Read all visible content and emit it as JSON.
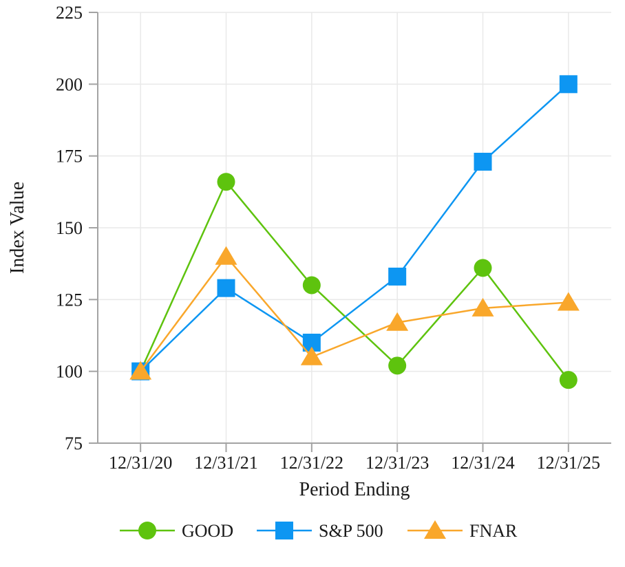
{
  "chart_data": {
    "type": "line",
    "title": "",
    "xlabel": "Period Ending",
    "ylabel": "Index Value",
    "categories": [
      "12/31/20",
      "12/31/21",
      "12/31/22",
      "12/31/23",
      "12/31/24",
      "12/31/25"
    ],
    "series": [
      {
        "name": "GOOD",
        "marker": "circle",
        "color": "#5ec30e",
        "values": [
          100,
          166,
          130,
          102,
          136,
          97
        ]
      },
      {
        "name": "S&P 500",
        "marker": "square",
        "color": "#0d96f2",
        "values": [
          100,
          129,
          110,
          133,
          173,
          200
        ]
      },
      {
        "name": "FNAR",
        "marker": "triangle",
        "color": "#f9a72b",
        "values": [
          100,
          140,
          105,
          117,
          122,
          124
        ]
      }
    ],
    "ylim": [
      75,
      225
    ],
    "yticks": [
      225,
      200,
      175,
      150,
      125,
      100,
      75
    ],
    "grid": true,
    "legend_position": "bottom",
    "grid_color": "#e9e9e9",
    "axis_color": "#a3a3a3",
    "text_color": "#1a1a1a"
  }
}
